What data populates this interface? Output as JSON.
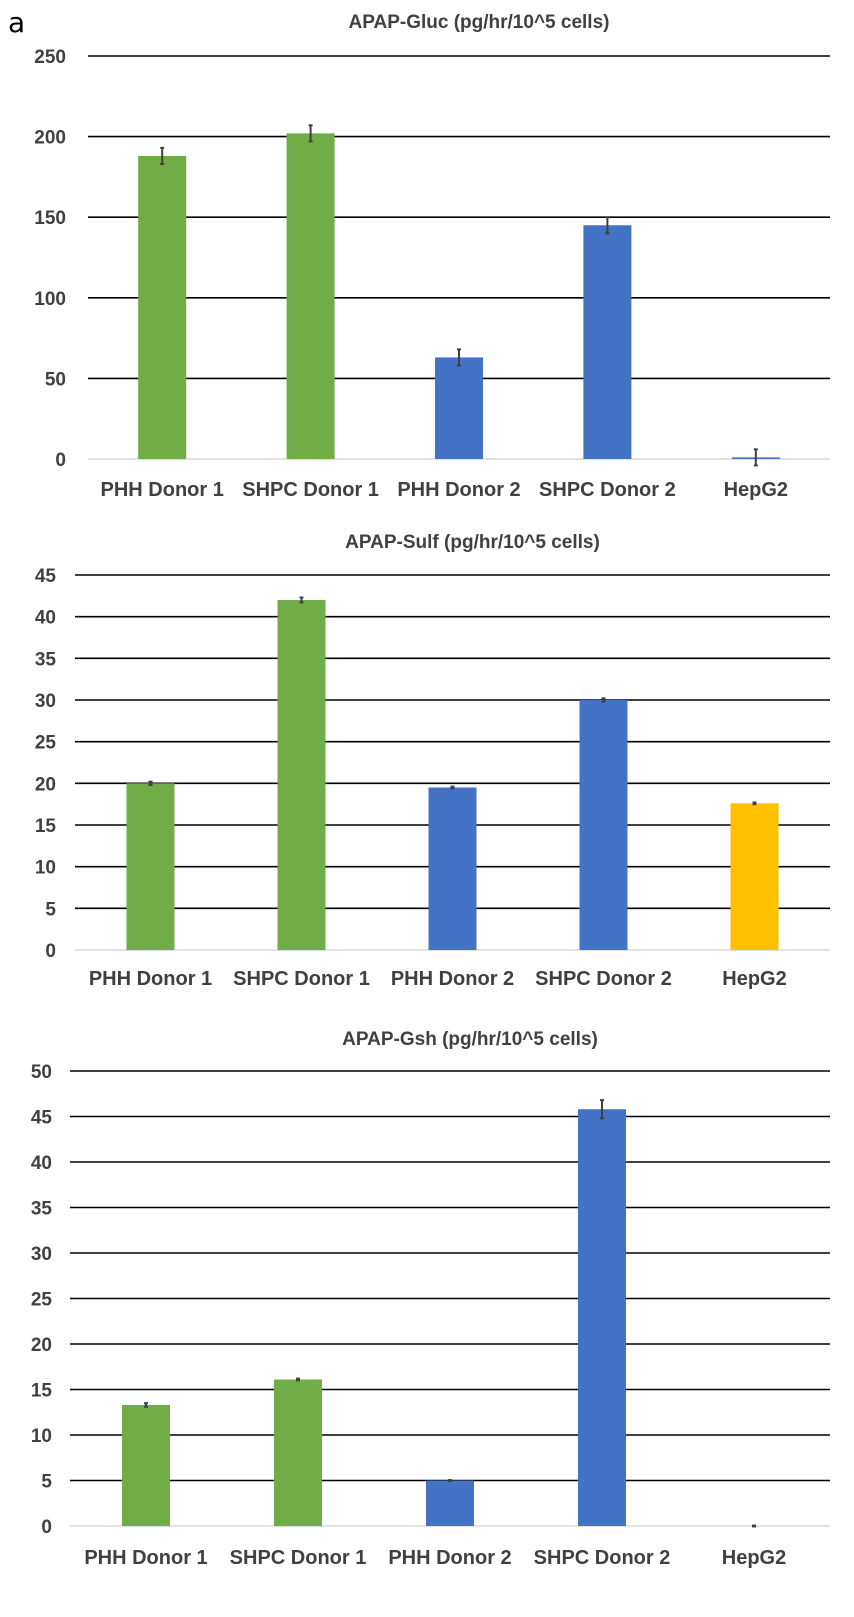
{
  "panel_label": "a",
  "chart_data": [
    {
      "type": "bar",
      "title": "APAP-Gluc (pg/hr/10^5 cells)",
      "xlabel": "",
      "ylabel": "",
      "categories": [
        "PHH Donor 1",
        "SHPC Donor 1",
        "PHH Donor 2",
        "SHPC Donor 2",
        "HepG2"
      ],
      "values": [
        188,
        202,
        63,
        145,
        1
      ],
      "errors": [
        5,
        5,
        5,
        5,
        5
      ],
      "colors": [
        "#70ad47",
        "#70ad47",
        "#4472c4",
        "#4472c4",
        "#4472c4"
      ],
      "ylim": [
        0,
        250
      ],
      "yticks": [
        "0",
        "50",
        "100",
        "150",
        "200",
        "250"
      ],
      "grid": true
    },
    {
      "type": "bar",
      "title": "APAP-Sulf (pg/hr/10^5 cells)",
      "xlabel": "",
      "ylabel": "",
      "categories": [
        "PHH Donor 1",
        "SHPC Donor 1",
        "PHH Donor 2",
        "SHPC Donor 2",
        "HepG2"
      ],
      "values": [
        20,
        42,
        19.5,
        30,
        17.6
      ],
      "errors": [
        0.2,
        0.3,
        0.1,
        0.2,
        0.1
      ],
      "colors": [
        "#70ad47",
        "#70ad47",
        "#4472c4",
        "#4472c4",
        "#ffc000"
      ],
      "ylim": [
        0,
        45
      ],
      "yticks": [
        "0",
        "5",
        "10",
        "15",
        "20",
        "25",
        "30",
        "35",
        "40",
        "45"
      ],
      "grid": true
    },
    {
      "type": "bar",
      "title": "APAP-Gsh (pg/hr/10^5 cells)",
      "xlabel": "",
      "ylabel": "",
      "categories": [
        "PHH Donor 1",
        "SHPC Donor 1",
        "PHH Donor 2",
        "SHPC Donor 2",
        "HepG2"
      ],
      "values": [
        13.3,
        16.1,
        5.0,
        45.8,
        0
      ],
      "errors": [
        0.2,
        0.1,
        0.05,
        1.0,
        0.05
      ],
      "colors": [
        "#70ad47",
        "#70ad47",
        "#4472c4",
        "#4472c4",
        "#4472c4"
      ],
      "ylim": [
        0,
        50
      ],
      "yticks": [
        "0",
        "5",
        "10",
        "15",
        "20",
        "25",
        "30",
        "35",
        "40",
        "45",
        "50"
      ],
      "grid": true
    }
  ]
}
